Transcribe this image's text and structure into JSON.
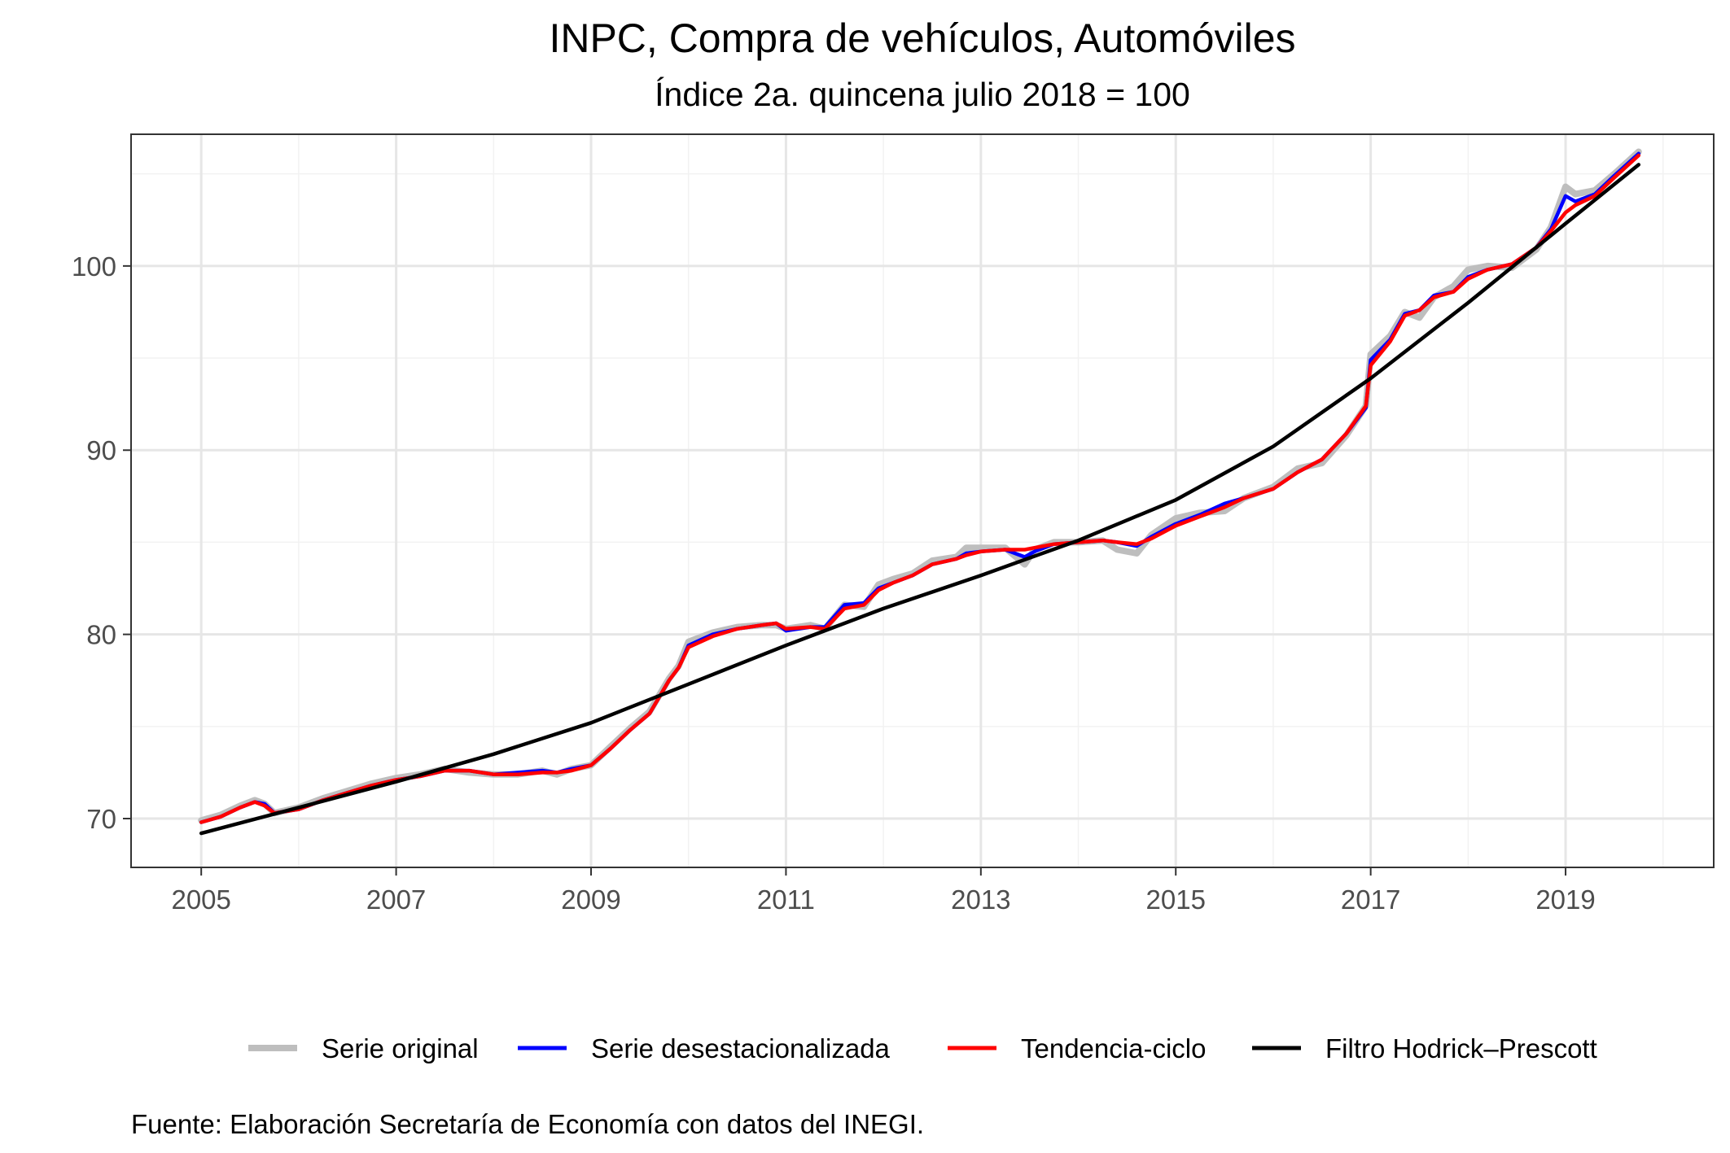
{
  "title": "INPC, Compra de vehículos, Automóviles",
  "subtitle": "Índice 2a. quincena julio 2018 = 100",
  "caption": "Fuente: Elaboración Secretaría de Economía con datos del INEGI.",
  "colors": {
    "serie_original": "#bebebe",
    "serie_desestacionalizada": "#0000ff",
    "tendencia_ciclo": "#ff0000",
    "hodrick_prescott": "#000000",
    "grid_major": "#e6e6e6",
    "grid_minor": "#f2f2f2",
    "panel_border": "#333333"
  },
  "chart_data": {
    "type": "line",
    "title": "INPC, Compra de vehículos, Automóviles",
    "subtitle": "Índice 2a. quincena julio 2018 = 100",
    "xlabel": "",
    "ylabel": "",
    "xlim": [
      2004.28,
      2020.52
    ],
    "ylim": [
      67.35,
      107.15
    ],
    "x_ticks": [
      2005,
      2007,
      2009,
      2011,
      2013,
      2015,
      2017,
      2019
    ],
    "x_tick_labels": [
      "2005",
      "2007",
      "2009",
      "2011",
      "2013",
      "2015",
      "2017",
      "2019"
    ],
    "y_ticks": [
      70,
      80,
      90,
      100
    ],
    "y_tick_labels": [
      "70",
      "80",
      "90",
      "100"
    ],
    "grid": true,
    "legend_position": "bottom",
    "series": [
      {
        "name": "Serie original",
        "color": "#bebebe",
        "x": [
          2005.0,
          2005.2,
          2005.4,
          2005.55,
          2005.65,
          2005.75,
          2006.0,
          2006.25,
          2006.5,
          2006.75,
          2007.0,
          2007.25,
          2007.5,
          2007.75,
          2008.0,
          2008.25,
          2008.5,
          2008.65,
          2008.8,
          2009.0,
          2009.2,
          2009.4,
          2009.6,
          2009.8,
          2009.9,
          2010.0,
          2010.25,
          2010.5,
          2010.75,
          2010.9,
          2011.0,
          2011.25,
          2011.4,
          2011.6,
          2011.8,
          2011.95,
          2012.1,
          2012.3,
          2012.5,
          2012.75,
          2012.85,
          2013.0,
          2013.25,
          2013.45,
          2013.55,
          2013.75,
          2014.0,
          2014.25,
          2014.4,
          2014.6,
          2014.75,
          2015.0,
          2015.25,
          2015.5,
          2015.7,
          2016.0,
          2016.25,
          2016.5,
          2016.75,
          2016.95,
          2017.0,
          2017.2,
          2017.35,
          2017.5,
          2017.65,
          2017.85,
          2018.0,
          2018.2,
          2018.45,
          2018.7,
          2018.85,
          2019.0,
          2019.1,
          2019.3,
          2019.5,
          2019.75
        ],
        "y": [
          69.9,
          70.2,
          70.7,
          71.0,
          70.8,
          70.3,
          70.6,
          71.1,
          71.5,
          71.9,
          72.2,
          72.4,
          72.7,
          72.5,
          72.4,
          72.4,
          72.6,
          72.4,
          72.7,
          72.9,
          73.9,
          74.9,
          75.8,
          77.6,
          78.3,
          79.6,
          80.1,
          80.4,
          80.5,
          80.5,
          80.3,
          80.5,
          80.3,
          81.6,
          81.5,
          82.7,
          83.0,
          83.3,
          84.0,
          84.2,
          84.7,
          84.7,
          84.7,
          83.8,
          84.6,
          85.0,
          85.0,
          85.1,
          84.6,
          84.4,
          85.4,
          86.3,
          86.6,
          86.7,
          87.4,
          88.0,
          89.0,
          89.3,
          90.8,
          92.4,
          95.2,
          96.2,
          97.5,
          97.2,
          98.3,
          98.9,
          99.8,
          100.0,
          99.9,
          100.9,
          102.1,
          104.3,
          103.9,
          104.1,
          105.0,
          106.2
        ]
      },
      {
        "name": "Serie desestacionalizada",
        "color": "#0000ff",
        "x": [
          2005.0,
          2005.2,
          2005.4,
          2005.55,
          2005.65,
          2005.75,
          2006.0,
          2006.25,
          2006.5,
          2006.75,
          2007.0,
          2007.25,
          2007.5,
          2007.75,
          2008.0,
          2008.25,
          2008.5,
          2008.65,
          2008.8,
          2009.0,
          2009.2,
          2009.4,
          2009.6,
          2009.8,
          2009.9,
          2010.0,
          2010.25,
          2010.5,
          2010.75,
          2010.9,
          2011.0,
          2011.25,
          2011.4,
          2011.6,
          2011.8,
          2011.95,
          2012.1,
          2012.3,
          2012.5,
          2012.75,
          2012.85,
          2013.0,
          2013.25,
          2013.45,
          2013.55,
          2013.75,
          2014.0,
          2014.25,
          2014.4,
          2014.6,
          2014.75,
          2015.0,
          2015.25,
          2015.5,
          2015.7,
          2016.0,
          2016.25,
          2016.5,
          2016.75,
          2016.95,
          2017.0,
          2017.2,
          2017.35,
          2017.5,
          2017.65,
          2017.85,
          2018.0,
          2018.2,
          2018.45,
          2018.7,
          2018.85,
          2019.0,
          2019.1,
          2019.3,
          2019.5,
          2019.75
        ],
        "y": [
          69.8,
          70.1,
          70.6,
          70.9,
          70.8,
          70.3,
          70.5,
          71.0,
          71.4,
          71.8,
          72.1,
          72.3,
          72.6,
          72.6,
          72.4,
          72.5,
          72.6,
          72.5,
          72.7,
          72.9,
          73.8,
          74.8,
          75.7,
          77.5,
          78.2,
          79.4,
          80.0,
          80.3,
          80.5,
          80.6,
          80.2,
          80.4,
          80.4,
          81.6,
          81.7,
          82.5,
          82.8,
          83.2,
          83.8,
          84.1,
          84.4,
          84.5,
          84.6,
          84.2,
          84.5,
          84.9,
          85.0,
          85.1,
          85.0,
          84.8,
          85.3,
          86.0,
          86.5,
          87.1,
          87.4,
          87.9,
          88.8,
          89.5,
          90.9,
          92.3,
          94.9,
          96.0,
          97.4,
          97.6,
          98.4,
          98.6,
          99.4,
          99.8,
          100.1,
          101.0,
          102.0,
          103.8,
          103.5,
          103.9,
          104.9,
          106.1
        ]
      },
      {
        "name": "Tendencia-ciclo",
        "color": "#ff0000",
        "x": [
          2005.0,
          2005.2,
          2005.4,
          2005.55,
          2005.65,
          2005.75,
          2006.0,
          2006.25,
          2006.5,
          2006.75,
          2007.0,
          2007.25,
          2007.5,
          2007.75,
          2008.0,
          2008.25,
          2008.5,
          2008.65,
          2008.8,
          2009.0,
          2009.2,
          2009.4,
          2009.6,
          2009.8,
          2009.9,
          2010.0,
          2010.25,
          2010.5,
          2010.75,
          2010.9,
          2011.0,
          2011.25,
          2011.4,
          2011.6,
          2011.8,
          2011.95,
          2012.1,
          2012.3,
          2012.5,
          2012.75,
          2012.85,
          2013.0,
          2013.25,
          2013.45,
          2013.55,
          2013.75,
          2014.0,
          2014.25,
          2014.4,
          2014.6,
          2014.75,
          2015.0,
          2015.25,
          2015.5,
          2015.7,
          2016.0,
          2016.25,
          2016.5,
          2016.75,
          2016.95,
          2017.0,
          2017.2,
          2017.35,
          2017.5,
          2017.65,
          2017.85,
          2018.0,
          2018.2,
          2018.45,
          2018.7,
          2018.85,
          2019.0,
          2019.1,
          2019.3,
          2019.5,
          2019.75
        ],
        "y": [
          69.8,
          70.1,
          70.6,
          70.9,
          70.7,
          70.3,
          70.5,
          71.0,
          71.4,
          71.8,
          72.1,
          72.3,
          72.6,
          72.6,
          72.4,
          72.4,
          72.5,
          72.5,
          72.6,
          72.9,
          73.8,
          74.8,
          75.7,
          77.5,
          78.2,
          79.3,
          79.9,
          80.3,
          80.5,
          80.6,
          80.3,
          80.4,
          80.3,
          81.4,
          81.6,
          82.4,
          82.8,
          83.2,
          83.8,
          84.1,
          84.3,
          84.5,
          84.6,
          84.6,
          84.7,
          84.9,
          85.0,
          85.1,
          85.0,
          84.9,
          85.2,
          85.9,
          86.4,
          86.9,
          87.4,
          87.9,
          88.8,
          89.5,
          90.9,
          92.4,
          94.6,
          95.9,
          97.3,
          97.6,
          98.3,
          98.6,
          99.3,
          99.8,
          100.1,
          101.0,
          101.9,
          102.9,
          103.3,
          103.8,
          104.8,
          106.0
        ]
      },
      {
        "name": "Filtro Hodrick–Prescott",
        "color": "#000000",
        "x": [
          2005.0,
          2006.0,
          2007.0,
          2008.0,
          2009.0,
          2010.0,
          2011.0,
          2012.0,
          2013.0,
          2014.0,
          2015.0,
          2016.0,
          2017.0,
          2018.0,
          2019.0,
          2019.75
        ],
        "y": [
          69.2,
          70.6,
          72.0,
          73.5,
          75.2,
          77.3,
          79.4,
          81.4,
          83.2,
          85.1,
          87.3,
          90.2,
          93.9,
          98.0,
          102.3,
          105.5
        ]
      }
    ]
  },
  "legend": [
    {
      "label": "Serie original",
      "color": "#bebebe"
    },
    {
      "label": "Serie desestacionalizada",
      "color": "#0000ff"
    },
    {
      "label": "Tendencia-ciclo",
      "color": "#ff0000"
    },
    {
      "label": "Filtro Hodrick–Prescott",
      "color": "#000000"
    }
  ]
}
